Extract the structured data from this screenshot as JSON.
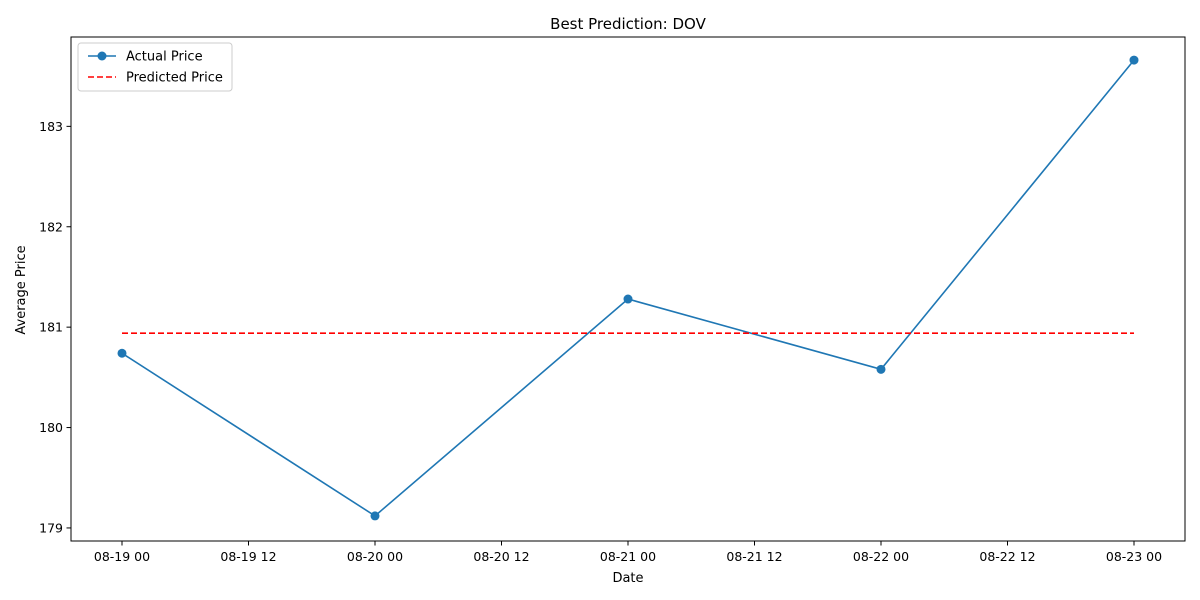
{
  "chart_data": {
    "type": "line",
    "title": "Best Prediction: DOV",
    "xlabel": "Date",
    "ylabel": "Average Price",
    "x": [
      "08-19 00",
      "08-20 00",
      "08-21 00",
      "08-22 00",
      "08-23 00"
    ],
    "x_ticks": [
      "08-19 00",
      "08-19 12",
      "08-20 00",
      "08-20 12",
      "08-21 00",
      "08-21 12",
      "08-22 00",
      "08-22 12",
      "08-23 00"
    ],
    "y_ticks": [
      179,
      180,
      181,
      182,
      183
    ],
    "ylim": [
      178.87,
      183.89
    ],
    "grid": false,
    "legend_position": "top-left",
    "series": [
      {
        "name": "Actual Price",
        "style": "solid-with-markers",
        "color": "#1f77b4",
        "values": [
          180.74,
          179.12,
          181.28,
          180.58,
          183.66
        ]
      },
      {
        "name": "Predicted Price",
        "style": "dashed",
        "color": "#ff0000",
        "values": [
          180.94,
          180.94,
          180.94,
          180.94,
          180.94
        ]
      }
    ]
  }
}
